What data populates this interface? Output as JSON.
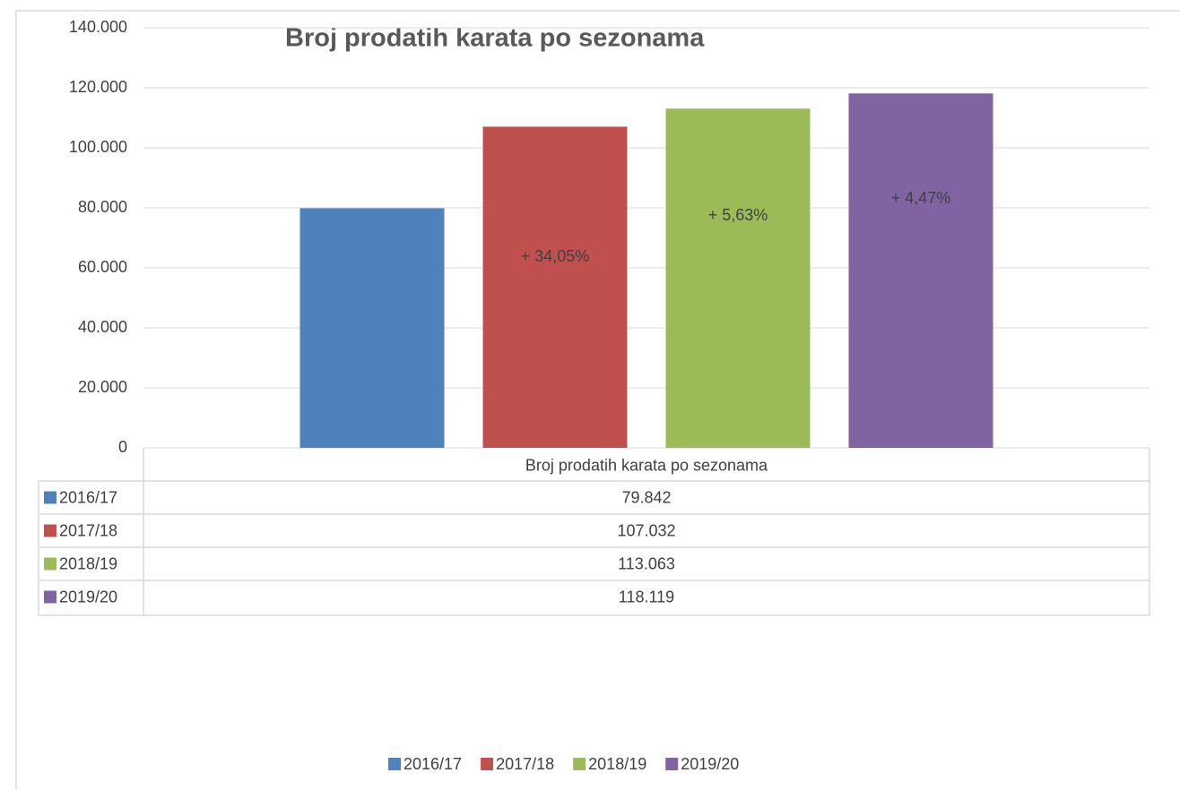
{
  "chart_data": {
    "type": "bar",
    "title": "Broj prodatih karata po sezonama",
    "categories": [
      "Broj prodatih karata po sezonama"
    ],
    "series": [
      {
        "name": "2016/17",
        "color": "#4f81bd",
        "values": [
          79842
        ],
        "value_labels": [
          "79.842"
        ]
      },
      {
        "name": "2017/18",
        "color": "#c0504d",
        "values": [
          107032
        ],
        "value_labels": [
          "107.032"
        ],
        "data_labels": [
          "+ 34,05%"
        ]
      },
      {
        "name": "2018/19",
        "color": "#9bbb59",
        "values": [
          113063
        ],
        "value_labels": [
          "113.063"
        ],
        "data_labels": [
          "+ 5,63%"
        ]
      },
      {
        "name": "2019/20",
        "color": "#8064a2",
        "values": [
          118119
        ],
        "value_labels": [
          "118.119"
        ],
        "data_labels": [
          "+ 4,47%"
        ]
      }
    ],
    "ylim": [
      0,
      140000
    ],
    "yticks": [
      0,
      {
        "value": 20000,
        "label": "20.000"
      },
      {
        "value": 40000,
        "label": "40.000"
      },
      {
        "value": 60000,
        "label": "60.000"
      },
      {
        "value": 80000,
        "label": "80.000"
      },
      {
        "value": 100000,
        "label": "100.000"
      },
      {
        "value": 120000,
        "label": "120.000"
      },
      {
        "value": 140000,
        "label": "140.000"
      }
    ],
    "grid": true,
    "data_table": true,
    "legend": "bottom"
  }
}
